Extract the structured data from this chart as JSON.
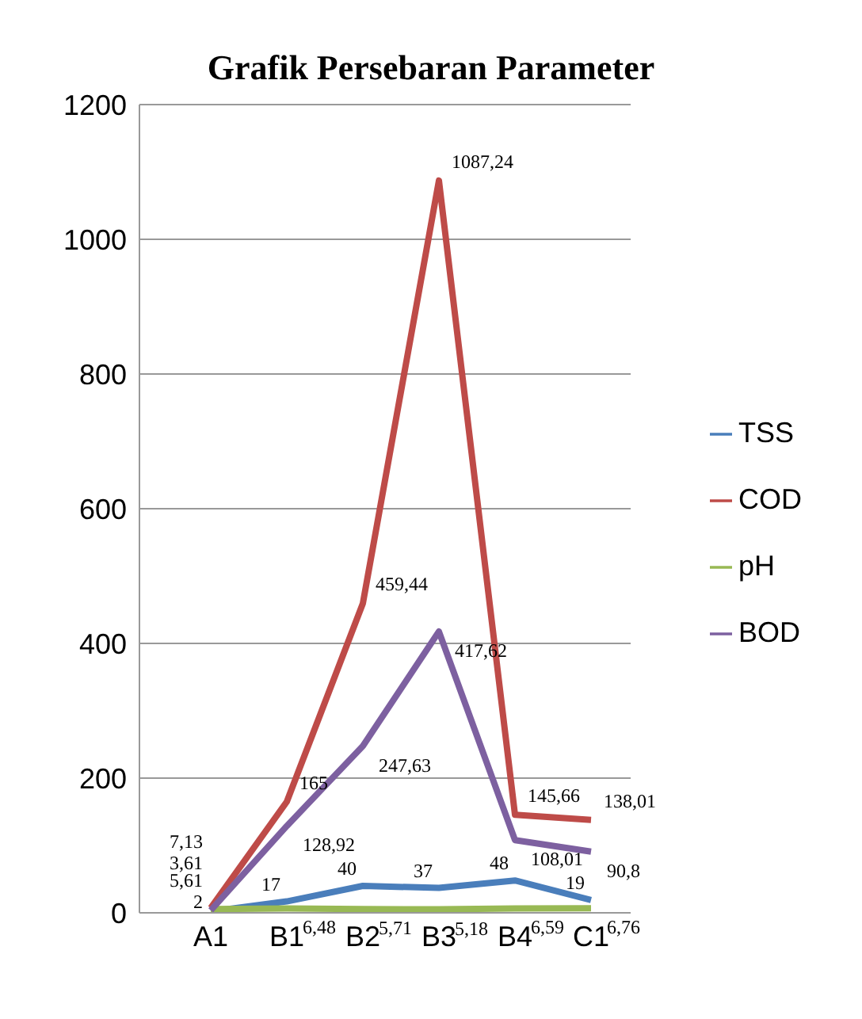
{
  "chart_data": {
    "type": "line",
    "title": "Grafik Persebaran Parameter",
    "categories": [
      "A1",
      "B1",
      "B2",
      "B3",
      "B4",
      "C1"
    ],
    "series": [
      {
        "name": "TSS",
        "color": "#4a7ebb",
        "values": [
          2,
          17,
          40,
          37,
          48,
          19
        ],
        "value_labels": [
          "2",
          "17",
          "40",
          "37",
          "48",
          "19"
        ]
      },
      {
        "name": "COD",
        "color": "#be4b48",
        "values": [
          7.13,
          165,
          459.44,
          1087.24,
          145.66,
          138.01
        ],
        "value_labels": [
          "7,13",
          "165",
          "459,44",
          "1087,24",
          "145,66",
          "138,01"
        ]
      },
      {
        "name": "pH",
        "color": "#98b954",
        "values": [
          5.61,
          6.48,
          5.71,
          5.18,
          6.59,
          6.76
        ],
        "value_labels": [
          "5,61",
          "6,48",
          "5,71",
          "5,18",
          "6,59",
          "6,76"
        ]
      },
      {
        "name": "BOD",
        "color": "#7d60a0",
        "values": [
          3.61,
          128.92,
          247.63,
          417.62,
          108.01,
          90.8
        ],
        "value_labels": [
          "3,61",
          "128,92",
          "247,63",
          "417,62",
          "108,01",
          "90,8"
        ]
      }
    ],
    "ylim": [
      0,
      1200
    ],
    "yticks": [
      0,
      200,
      400,
      600,
      800,
      1000,
      1200
    ],
    "grid": "y",
    "legend": "right",
    "marker": "none",
    "line_style": "solid"
  }
}
